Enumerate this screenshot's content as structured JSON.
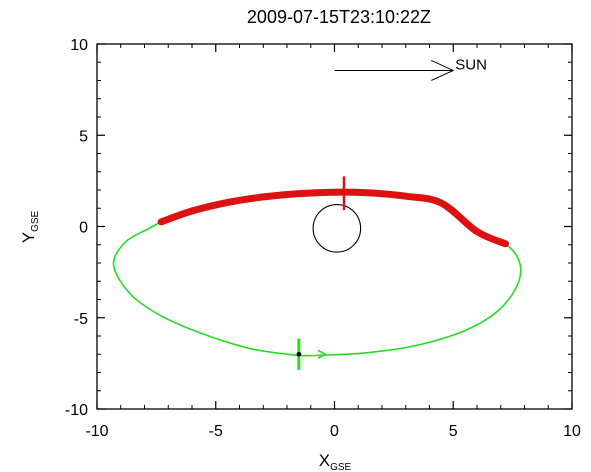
{
  "chart_data": {
    "type": "line",
    "title": "2009-07-15T23:10:22Z",
    "xlabel": {
      "main": "X",
      "subscript": "GSE"
    },
    "ylabel": {
      "main": "Y",
      "subscript": "GSE"
    },
    "xlim": [
      -10,
      10
    ],
    "ylim": [
      -10,
      10
    ],
    "x_ticks": [
      -10,
      -5,
      0,
      5,
      10
    ],
    "y_ticks": [
      -10,
      -5,
      0,
      5,
      10
    ],
    "x_tick_labels": [
      "-10",
      "-5",
      "0",
      "5",
      "10"
    ],
    "y_tick_labels": [
      "-10",
      "-5",
      "0",
      "5",
      "10"
    ],
    "grid": false,
    "orbit": {
      "color": "#22dd22",
      "highlight_color": "#dd1111",
      "points": [
        [
          -7.3,
          0.25
        ],
        [
          -6.0,
          0.85
        ],
        [
          -4.5,
          1.32
        ],
        [
          -3.0,
          1.62
        ],
        [
          -1.5,
          1.8
        ],
        [
          0.0,
          1.88
        ],
        [
          1.5,
          1.84
        ],
        [
          3.0,
          1.66
        ],
        [
          4.5,
          1.28
        ],
        [
          6.0,
          -0.28
        ],
        [
          7.2,
          -0.95
        ],
        [
          7.8,
          -2.0
        ],
        [
          7.7,
          -3.2
        ],
        [
          6.9,
          -4.6
        ],
        [
          5.5,
          -5.7
        ],
        [
          3.5,
          -6.5
        ],
        [
          1.5,
          -6.9
        ],
        [
          -0.5,
          -7.05
        ],
        [
          -1.6,
          -7.05
        ],
        [
          -3.5,
          -6.7
        ],
        [
          -5.5,
          -5.9
        ],
        [
          -7.3,
          -4.9
        ],
        [
          -8.6,
          -3.7
        ],
        [
          -9.3,
          -2.1
        ],
        [
          -8.8,
          -0.85
        ],
        [
          -7.8,
          -0.1
        ],
        [
          -7.3,
          0.25
        ]
      ],
      "highlight_range": [
        0,
        11
      ],
      "direction_arrow": {
        "x": -0.4,
        "y": -7.0
      },
      "spacecraft_marker": {
        "x": -1.5,
        "y": -7.0,
        "bar_half_height": 0.85
      }
    },
    "earth": {
      "center_x": 0.1,
      "center_y": -0.1,
      "radius": 1.0
    },
    "red_marker": {
      "x": 0.4,
      "y_from": 0.9,
      "y_to": 2.75
    },
    "sun_arrow": {
      "x_from": 0.0,
      "x_to": 5.0,
      "y": 8.55,
      "label": "SUN"
    }
  }
}
